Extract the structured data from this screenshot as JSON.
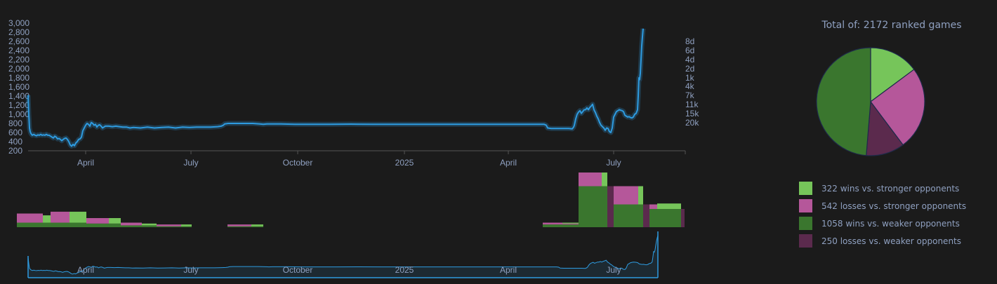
{
  "colors": {
    "background": "#1b1b1b",
    "line": "#2e9be0",
    "text": "#8fa0c0",
    "wins_stronger": "#76c55a",
    "losses_stronger": "#b5579a",
    "wins_weaker": "#3a762e",
    "losses_weaker": "#5b2a4d"
  },
  "chart_data": [
    {
      "type": "line",
      "name": "rating-chart",
      "y_ticks_left": [
        "3,000",
        "2,800",
        "2,600",
        "2,400",
        "2,200",
        "2,000",
        "1,800",
        "1,600",
        "1,400",
        "1,200",
        "1,000",
        "800",
        "600",
        "400",
        "200"
      ],
      "y_ticks_right": [
        "8d",
        "6d",
        "4d",
        "2d",
        "1k",
        "4k",
        "7k",
        "11k",
        "15k",
        "20k"
      ],
      "x_ticks": [
        "April",
        "July",
        "October",
        "2025",
        "April",
        "July"
      ],
      "ylim": [
        200,
        3000
      ],
      "grid": false,
      "points": [
        [
          0,
          1420
        ],
        [
          1,
          1000
        ],
        [
          2,
          700
        ],
        [
          3,
          620
        ],
        [
          4,
          580
        ],
        [
          5,
          560
        ],
        [
          6,
          540
        ],
        [
          8,
          560
        ],
        [
          10,
          540
        ],
        [
          12,
          530
        ],
        [
          14,
          550
        ],
        [
          16,
          540
        ],
        [
          18,
          560
        ],
        [
          20,
          540
        ],
        [
          22,
          550
        ],
        [
          24,
          540
        ],
        [
          26,
          560
        ],
        [
          28,
          540
        ],
        [
          30,
          540
        ],
        [
          32,
          520
        ],
        [
          34,
          500
        ],
        [
          36,
          480
        ],
        [
          38,
          520
        ],
        [
          40,
          500
        ],
        [
          42,
          460
        ],
        [
          44,
          470
        ],
        [
          46,
          450
        ],
        [
          48,
          420
        ],
        [
          50,
          450
        ],
        [
          52,
          470
        ],
        [
          54,
          480
        ],
        [
          56,
          450
        ],
        [
          58,
          400
        ],
        [
          60,
          330
        ],
        [
          62,
          300
        ],
        [
          64,
          340
        ],
        [
          66,
          310
        ],
        [
          68,
          370
        ],
        [
          70,
          400
        ],
        [
          72,
          450
        ],
        [
          74,
          460
        ],
        [
          76,
          500
        ],
        [
          78,
          640
        ],
        [
          80,
          700
        ],
        [
          82,
          760
        ],
        [
          84,
          800
        ],
        [
          86,
          780
        ],
        [
          88,
          740
        ],
        [
          90,
          820
        ],
        [
          92,
          800
        ],
        [
          94,
          760
        ],
        [
          96,
          780
        ],
        [
          98,
          720
        ],
        [
          100,
          760
        ],
        [
          102,
          770
        ],
        [
          104,
          740
        ],
        [
          106,
          700
        ],
        [
          108,
          720
        ],
        [
          110,
          740
        ],
        [
          115,
          740
        ],
        [
          120,
          730
        ],
        [
          125,
          740
        ],
        [
          130,
          730
        ],
        [
          135,
          720
        ],
        [
          140,
          720
        ],
        [
          145,
          700
        ],
        [
          150,
          710
        ],
        [
          160,
          700
        ],
        [
          170,
          720
        ],
        [
          180,
          700
        ],
        [
          190,
          710
        ],
        [
          200,
          720
        ],
        [
          210,
          700
        ],
        [
          220,
          720
        ],
        [
          230,
          710
        ],
        [
          240,
          720
        ],
        [
          250,
          720
        ],
        [
          260,
          720
        ],
        [
          270,
          730
        ],
        [
          275,
          740
        ],
        [
          278,
          760
        ],
        [
          280,
          790
        ],
        [
          285,
          800
        ],
        [
          300,
          800
        ],
        [
          320,
          800
        ],
        [
          330,
          790
        ],
        [
          335,
          780
        ],
        [
          340,
          790
        ],
        [
          360,
          790
        ],
        [
          380,
          780
        ],
        [
          400,
          780
        ],
        [
          430,
          780
        ],
        [
          460,
          785
        ],
        [
          490,
          780
        ],
        [
          520,
          780
        ],
        [
          550,
          780
        ],
        [
          580,
          780
        ],
        [
          610,
          780
        ],
        [
          640,
          780
        ],
        [
          670,
          780
        ],
        [
          700,
          780
        ],
        [
          720,
          780
        ],
        [
          735,
          780
        ],
        [
          738,
          760
        ],
        [
          740,
          700
        ],
        [
          745,
          690
        ],
        [
          760,
          690
        ],
        [
          770,
          690
        ],
        [
          775,
          680
        ],
        [
          777,
          720
        ],
        [
          778,
          760
        ],
        [
          780,
          900
        ],
        [
          782,
          1000
        ],
        [
          784,
          1050
        ],
        [
          786,
          1080
        ],
        [
          788,
          1020
        ],
        [
          790,
          1060
        ],
        [
          792,
          1100
        ],
        [
          794,
          1100
        ],
        [
          796,
          1140
        ],
        [
          798,
          1100
        ],
        [
          800,
          1150
        ],
        [
          802,
          1180
        ],
        [
          804,
          1220
        ],
        [
          806,
          1100
        ],
        [
          808,
          1040
        ],
        [
          810,
          960
        ],
        [
          812,
          900
        ],
        [
          814,
          820
        ],
        [
          816,
          760
        ],
        [
          818,
          730
        ],
        [
          820,
          700
        ],
        [
          822,
          650
        ],
        [
          824,
          700
        ],
        [
          826,
          690
        ],
        [
          828,
          620
        ],
        [
          830,
          600
        ],
        [
          832,
          700
        ],
        [
          834,
          940
        ],
        [
          836,
          1000
        ],
        [
          838,
          1060
        ],
        [
          840,
          1080
        ],
        [
          842,
          1100
        ],
        [
          844,
          1090
        ],
        [
          846,
          1080
        ],
        [
          848,
          1060
        ],
        [
          850,
          980
        ],
        [
          852,
          960
        ],
        [
          854,
          940
        ],
        [
          856,
          950
        ],
        [
          858,
          930
        ],
        [
          860,
          920
        ],
        [
          862,
          940
        ],
        [
          864,
          1000
        ],
        [
          866,
          1020
        ],
        [
          868,
          1100
        ],
        [
          869,
          1400
        ],
        [
          870,
          1800
        ],
        [
          871,
          1760
        ],
        [
          872,
          1900
        ],
        [
          873,
          2200
        ],
        [
          874,
          2500
        ],
        [
          875,
          2700
        ],
        [
          876,
          2880
        ]
      ]
    },
    {
      "type": "bar",
      "name": "games-histogram",
      "series": [
        "wins vs. stronger",
        "losses vs. stronger",
        "wins vs. weaker",
        "losses vs. weaker"
      ],
      "bars": [
        {
          "x0": 24,
          "x1": 55,
          "values": [
            0,
            10,
            5,
            0
          ]
        },
        {
          "x0": 55,
          "x1": 61,
          "values": [
            0,
            10,
            5,
            0
          ]
        },
        {
          "x0": 61,
          "x1": 72,
          "values": [
            8,
            0,
            5,
            0
          ]
        },
        {
          "x0": 72,
          "x1": 99,
          "values": [
            0,
            12,
            5,
            0
          ]
        },
        {
          "x0": 99,
          "x1": 123,
          "values": [
            12,
            0,
            5,
            0
          ]
        },
        {
          "x0": 123,
          "x1": 155,
          "values": [
            0,
            6,
            4,
            0
          ]
        },
        {
          "x0": 155,
          "x1": 172,
          "values": [
            6,
            0,
            4,
            0
          ]
        },
        {
          "x0": 172,
          "x1": 202,
          "values": [
            0,
            3,
            2,
            0
          ]
        },
        {
          "x0": 202,
          "x1": 223,
          "values": [
            2,
            0,
            2,
            0
          ]
        },
        {
          "x0": 223,
          "x1": 258,
          "values": [
            0,
            2,
            1,
            0
          ]
        },
        {
          "x0": 258,
          "x1": 273,
          "values": [
            2,
            0,
            1,
            0
          ]
        },
        {
          "x0": 324,
          "x1": 358,
          "values": [
            0,
            2,
            1,
            0
          ]
        },
        {
          "x0": 358,
          "x1": 375,
          "values": [
            2,
            0,
            1,
            0
          ]
        },
        {
          "x0": 773,
          "x1": 801,
          "values": [
            0,
            2,
            3,
            0
          ]
        },
        {
          "x0": 801,
          "x1": 824,
          "values": [
            1,
            1,
            3,
            0
          ]
        },
        {
          "x0": 824,
          "x1": 857,
          "values": [
            0,
            15,
            45,
            0
          ]
        },
        {
          "x0": 857,
          "x1": 865,
          "values": [
            15,
            0,
            45,
            0
          ]
        },
        {
          "x0": 865,
          "x1": 874,
          "values": [
            0,
            0,
            0,
            45
          ]
        },
        {
          "x0": 874,
          "x1": 909,
          "values": [
            0,
            20,
            25,
            0
          ]
        },
        {
          "x0": 909,
          "x1": 916,
          "values": [
            20,
            0,
            25,
            0
          ]
        },
        {
          "x0": 916,
          "x1": 925,
          "values": [
            0,
            0,
            0,
            25
          ]
        },
        {
          "x0": 925,
          "x1": 936,
          "values": [
            0,
            5,
            20,
            0
          ]
        },
        {
          "x0": 936,
          "x1": 970,
          "values": [
            6,
            0,
            20,
            0
          ]
        },
        {
          "x0": 970,
          "x1": 975,
          "values": [
            0,
            0,
            0,
            20
          ]
        }
      ]
    },
    {
      "type": "pie",
      "name": "results-pie",
      "title": "Total of: 2172 ranked games",
      "slices": [
        {
          "label": "322 wins vs. stronger opponents",
          "value": 322,
          "color": "#76c55a"
        },
        {
          "label": "542 losses vs. stronger opponents",
          "value": 542,
          "color": "#b5579a"
        },
        {
          "label": "250 losses vs. weaker opponents",
          "value": 250,
          "color": "#5b2a4d"
        },
        {
          "label": "1058 wins vs. weaker opponents",
          "value": 1058,
          "color": "#3a762e"
        }
      ]
    }
  ],
  "legend": [
    {
      "label": "322 wins vs. stronger opponents",
      "color": "#76c55a"
    },
    {
      "label": "542 losses vs. stronger opponents",
      "color": "#b5579a"
    },
    {
      "label": "1058 wins vs. weaker opponents",
      "color": "#3a762e"
    },
    {
      "label": "250 losses vs. weaker opponents",
      "color": "#5b2a4d"
    }
  ],
  "navigator": {
    "x_ticks": [
      "April",
      "July",
      "October",
      "2025",
      "April",
      "July"
    ]
  }
}
